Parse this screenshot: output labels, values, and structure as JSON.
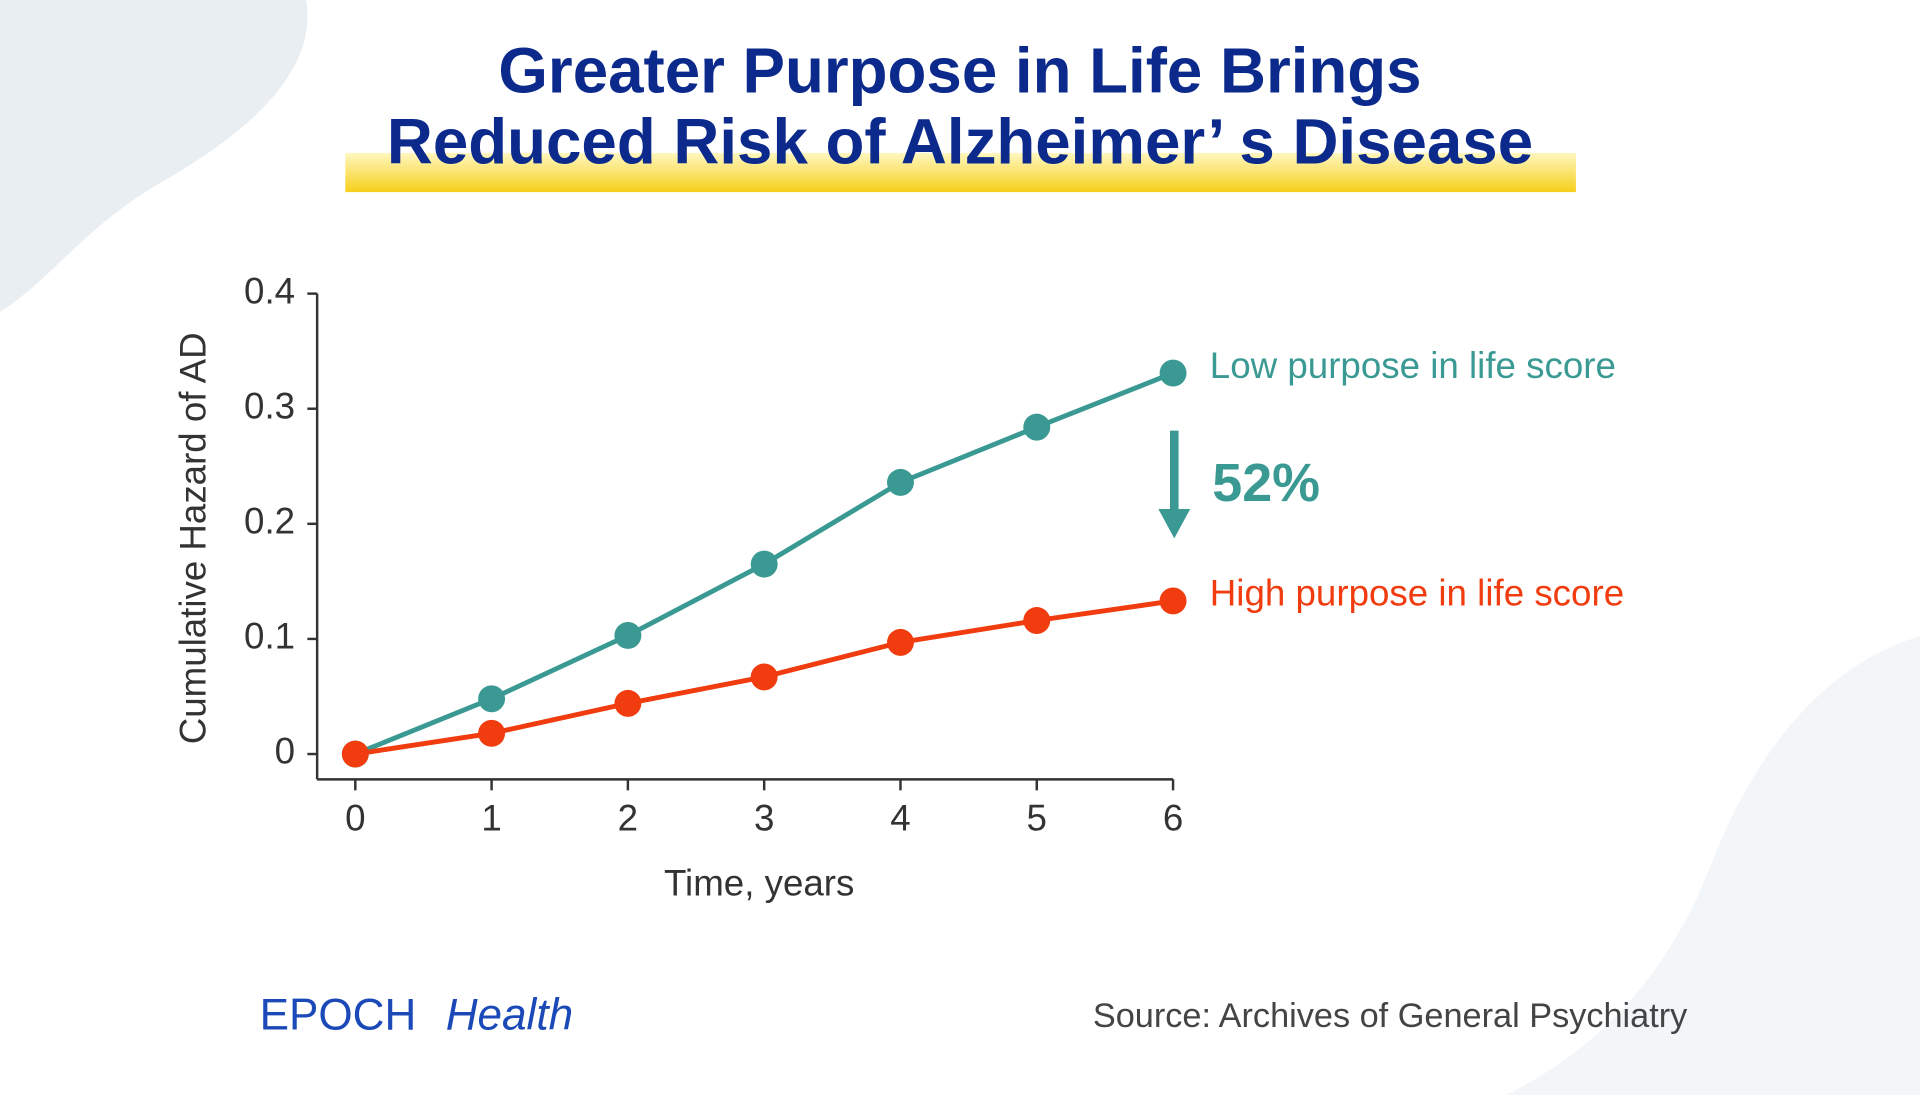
{
  "chart_data": {
    "type": "line",
    "title": [
      "Greater Purpose in Life Brings",
      "Reduced Risk of Alzheimer’ s Disease"
    ],
    "x": [
      0,
      1,
      2,
      3,
      4,
      5,
      6
    ],
    "series": [
      {
        "name": "Low purpose in life score",
        "color": "#3a9a93",
        "values": [
          0,
          0.048,
          0.103,
          0.165,
          0.236,
          0.284,
          0.331
        ]
      },
      {
        "name": "High purpose in life score",
        "color": "#f03c0f",
        "values": [
          0,
          0.018,
          0.044,
          0.067,
          0.097,
          0.116,
          0.133
        ]
      }
    ],
    "xlabel": "Time, years",
    "ylabel": "Cumulative Hazard of AD",
    "xlim": [
      -0.28,
      6
    ],
    "xticks": [
      0,
      1,
      2,
      3,
      4,
      5,
      6
    ],
    "ylim": [
      -0.022,
      0.4
    ],
    "yticks": [
      0,
      0.1,
      0.2,
      0.3,
      0.4
    ],
    "annotation": "52%"
  },
  "brand": {
    "name": "EPOCH",
    "section": "Health"
  },
  "source": "Source: Archives of General Psychiatry"
}
